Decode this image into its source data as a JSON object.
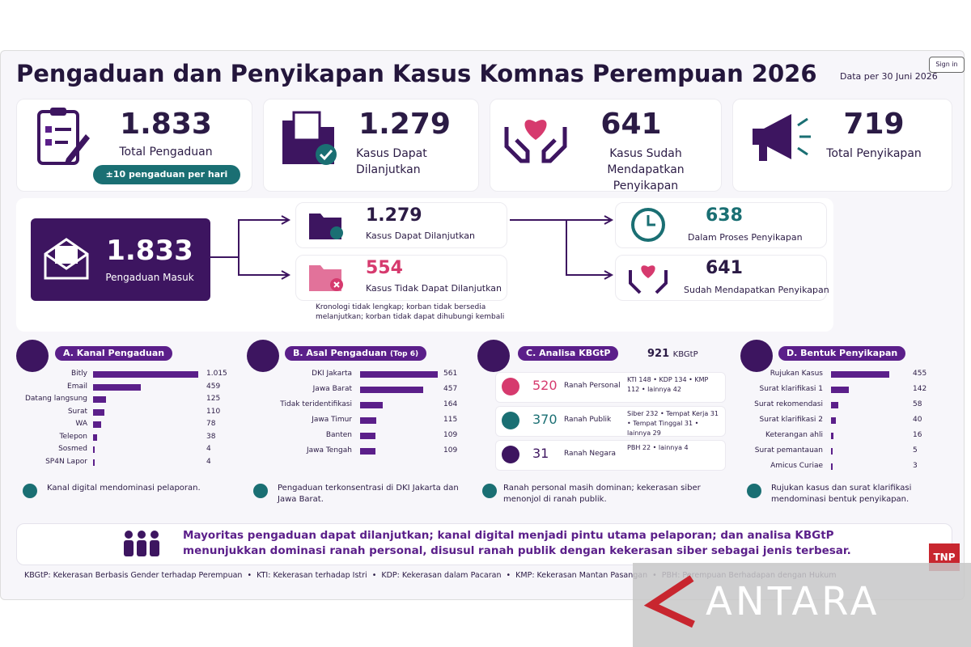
{
  "header": {
    "title": "Pengaduan dan Penyikapan Kasus Komnas Perempuan 2026",
    "date": "Data per 30 Juni 2026",
    "sign_in": "Sign in"
  },
  "stats": [
    {
      "value": "1.833",
      "label": "Total Pengaduan",
      "badge": "±10 pengaduan per hari"
    },
    {
      "value": "1.279",
      "label": "Kasus Dapat Dilanjutkan"
    },
    {
      "value": "641",
      "label": "Kasus Sudah Mendapatkan Penyikapan"
    },
    {
      "value": "719",
      "label": "Total Penyikapan"
    }
  ],
  "flow": {
    "incoming": {
      "value": "1.833",
      "label": "Pengaduan Masuk"
    },
    "continued": {
      "value": "1.279",
      "label": "Kasus Dapat Dilanjutkan"
    },
    "not_continued": {
      "value": "554",
      "label": "Kasus Tidak Dapat Dilanjutkan",
      "note": "Kronologi tidak lengkap; korban tidak bersedia melanjutkan; korban tidak dapat dihubungi kembali"
    },
    "in_process": {
      "value": "638",
      "label": "Dalam Proses Penyikapan"
    },
    "addressed": {
      "value": "641",
      "label": "Sudah Mendapatkan Penyikapan"
    }
  },
  "kanal": {
    "title": "A. Kanal Pengaduan",
    "categories": [
      "Bitly",
      "Email",
      "Datang langsung",
      "Surat",
      "WA",
      "Telepon",
      "Sosmed",
      "SP4N Lapor"
    ],
    "values": [
      1015,
      459,
      125,
      110,
      78,
      38,
      4,
      4
    ],
    "value_labels": [
      "1.015",
      "459",
      "125",
      "110",
      "78",
      "38",
      "4",
      "4"
    ],
    "note": "Kanal digital mendominasi pelaporan."
  },
  "asal": {
    "title": "B. Asal Pengaduan",
    "title_note": "(Top 6)",
    "categories": [
      "DKI Jakarta",
      "Jawa Barat",
      "Tidak teridentifikasi",
      "Jawa Timur",
      "Banten",
      "Jawa Tengah"
    ],
    "values": [
      561,
      457,
      164,
      115,
      109,
      109
    ],
    "note": "Pengaduan terkonsentrasi di DKI Jakarta dan Jawa Barat."
  },
  "analisa": {
    "title": "C. Analisa KBGtP",
    "total": "921",
    "total_unit": "KBGtP",
    "rows": [
      {
        "value": "520",
        "label": "Ranah Personal",
        "detail": "KTI 148 • KDP 134 • KMP 112 • lainnya 42"
      },
      {
        "value": "370",
        "label": "Ranah Publik",
        "detail": "Siber 232 • Tempat Kerja 31 • Tempat Tinggal 31 • lainnya 29"
      },
      {
        "value": "31",
        "label": "Ranah Negara",
        "detail": "PBH 22 • lainnya 4"
      }
    ],
    "note": "Ranah personal masih dominan; kekerasan siber menonjol di ranah publik."
  },
  "bentuk": {
    "title": "D. Bentuk Penyikapan",
    "categories": [
      "Rujukan Kasus",
      "Surat klarifikasi 1",
      "Surat rekomendasi",
      "Surat klarifikasi 2",
      "Keterangan ahli",
      "Surat pemantauan",
      "Amicus Curiae"
    ],
    "values": [
      455,
      142,
      58,
      40,
      16,
      5,
      3
    ],
    "note": "Rujukan kasus dan surat klarifikasi mendominasi bentuk penyikapan."
  },
  "summary": {
    "lines": [
      "Mayoritas pengaduan dapat dilanjutkan; kanal digital menjadi pintu utama pelaporan; dan analisa KBGtP",
      "menunjukkan dominasi ranah personal, disusul ranah publik dengan kekerasan siber sebagai jenis terbesar."
    ]
  },
  "footnote": "KBGtP: Kekerasan Berbasis Gender terhadap Perempuan  •  KTI: Kekerasan terhadap Istri  •  KDP: Kekerasan dalam Pacaran  •  KMP: Kekerasan Mantan Pasangan  •  PBH: Perempuan Berhadapan dengan Hukum",
  "logo": "TNP",
  "watermark": "ANTARA"
}
